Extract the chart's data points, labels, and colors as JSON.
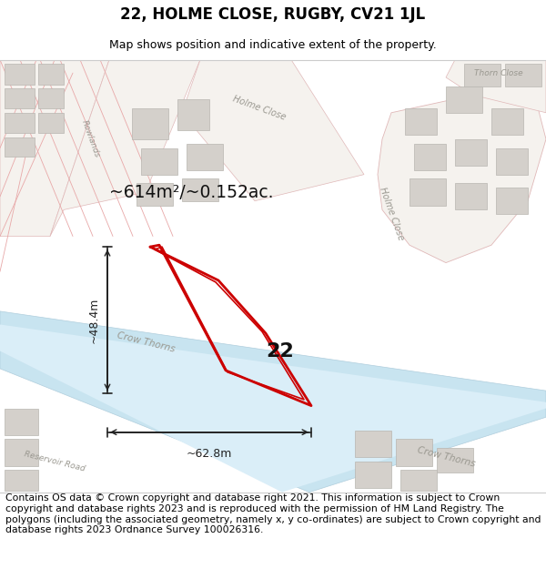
{
  "title": "22, HOLME CLOSE, RUGBY, CV21 1JL",
  "subtitle": "Map shows position and indicative extent of the property.",
  "footer": "Contains OS data © Crown copyright and database right 2021. This information is subject to Crown copyright and database rights 2023 and is reproduced with the permission of HM Land Registry. The polygons (including the associated geometry, namely x, y co-ordinates) are subject to Crown copyright and database rights 2023 Ordnance Survey 100026316.",
  "title_fontsize": 12,
  "subtitle_fontsize": 9,
  "footer_fontsize": 7.8,
  "map_bg": "#f2f0ed",
  "red_color": "#cc0000",
  "meas_color": "#222222",
  "area_label": "~614m²/~0.152ac.",
  "dim_h": "~48.4m",
  "dim_w": "~62.8m",
  "label_22": "22"
}
